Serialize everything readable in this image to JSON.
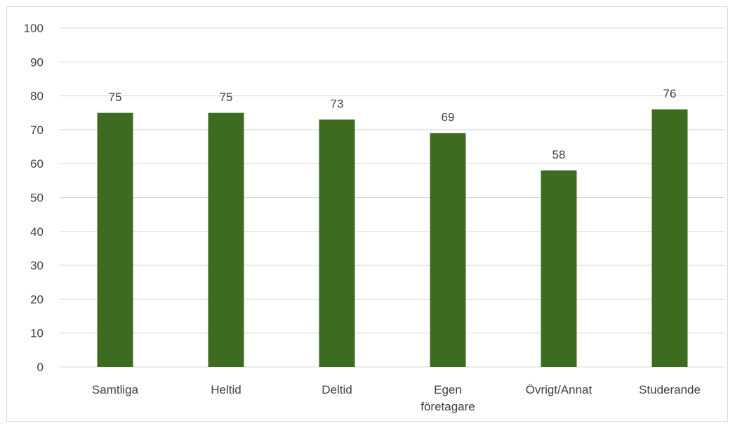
{
  "chart_data": {
    "type": "bar",
    "categories": [
      "Samtliga",
      "Heltid",
      "Deltid",
      "Egen företagare",
      "Övrigt/Annat",
      "Studerande"
    ],
    "category_lines": [
      [
        "Samtliga"
      ],
      [
        "Heltid"
      ],
      [
        "Deltid"
      ],
      [
        "Egen",
        "företagare"
      ],
      [
        "Övrigt/Annat"
      ],
      [
        "Studerande"
      ]
    ],
    "values": [
      75,
      75,
      73,
      69,
      58,
      76
    ],
    "data_labels": [
      "75",
      "75",
      "73",
      "69",
      "58",
      "76"
    ],
    "ylim": [
      0,
      100
    ],
    "yticks": [
      0,
      10,
      20,
      30,
      40,
      50,
      60,
      70,
      80,
      90,
      100
    ],
    "title": "",
    "xlabel": "",
    "ylabel": "",
    "grid": true,
    "legend": "none",
    "bar_color": "#3d6b1f",
    "grid_color": "#d9d9d9",
    "text_color": "#404040"
  }
}
